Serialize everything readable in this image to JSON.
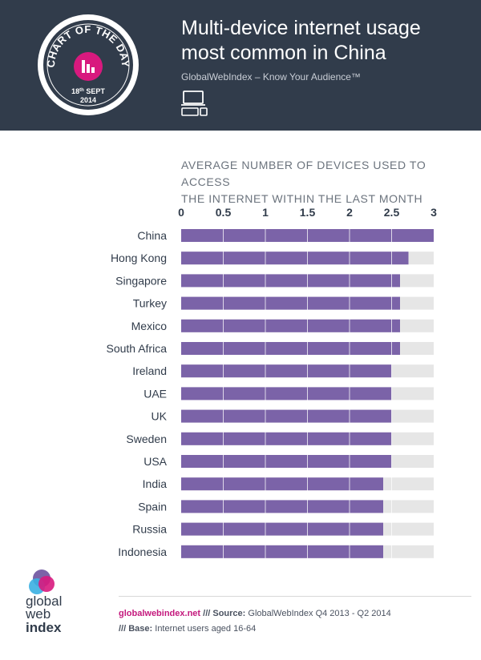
{
  "header": {
    "badge_top": "CHART OF THE DAY",
    "badge_day": "18",
    "badge_suffix": "th",
    "badge_month": " SEPT",
    "badge_year": "2014",
    "title_line1": "Multi-device internet usage",
    "title_line2": "most common in China",
    "subtitle": "GlobalWebIndex – Know Your Audience™"
  },
  "chart_data": {
    "type": "bar",
    "orientation": "horizontal",
    "title_line1": "AVERAGE NUMBER OF DEVICES USED TO ACCESS",
    "title_line2": "THE INTERNET WITHIN THE LAST MONTH",
    "xlim": [
      0,
      3
    ],
    "ticks": [
      "0",
      "0.5",
      "1",
      "1.5",
      "2",
      "2.5",
      "3"
    ],
    "categories": [
      "China",
      "Hong Kong",
      "Singapore",
      "Turkey",
      "Mexico",
      "South Africa",
      "Ireland",
      "UAE",
      "UK",
      "Sweden",
      "USA",
      "India",
      "Spain",
      "Russia",
      "Indonesia"
    ],
    "values": [
      3.0,
      2.7,
      2.6,
      2.6,
      2.6,
      2.6,
      2.5,
      2.5,
      2.5,
      2.5,
      2.5,
      2.4,
      2.4,
      2.4,
      2.4
    ],
    "bar_color": "#7b63a8",
    "track_color": "#e6e6e6",
    "grid": true
  },
  "footer": {
    "site": "globalwebindex.net",
    "sep1": " /// ",
    "source_label": "Source:",
    "source_value": " GlobalWebIndex Q4 2013 - Q2 2014",
    "sep2": "/// ",
    "base_label": "Base:",
    "base_value": " Internet users aged 16-64",
    "logo_line1": "global",
    "logo_line2": "web",
    "logo_line3": "index"
  },
  "colors": {
    "header_bg": "#313c4b",
    "accent_pink": "#d8197e",
    "accent_purple": "#7b63a8",
    "accent_blue": "#3ab0e2"
  }
}
